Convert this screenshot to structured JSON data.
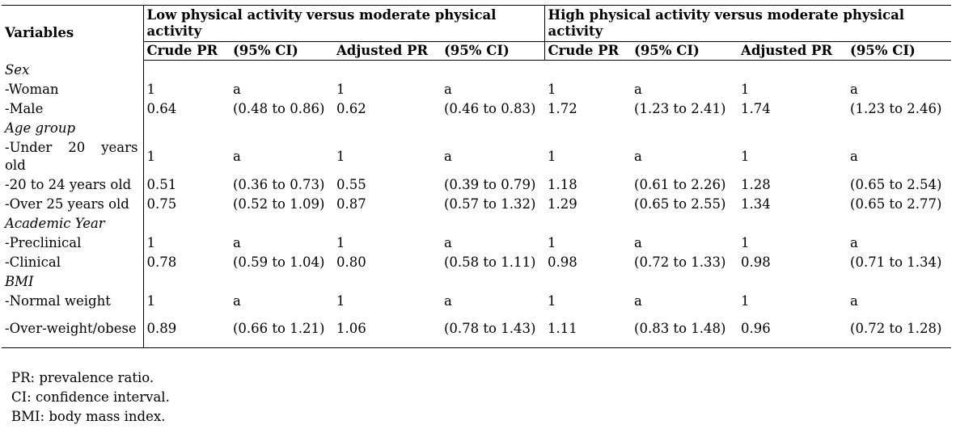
{
  "header": {
    "variables": "Variables",
    "group_low": "Low physical activity versus moderate physical activity",
    "group_high": "High physical activity versus moderate physical activity",
    "sub": [
      "Crude PR",
      "(95% CI)",
      "Adjusted PR",
      "(95% CI)",
      "Crude PR",
      "(95% CI)",
      "Adjusted PR",
      "(95% CI)"
    ]
  },
  "rows": [
    {
      "type": "section",
      "label": "Sex"
    },
    {
      "type": "data",
      "label": "-Woman",
      "cells": [
        "1",
        "a",
        "1",
        "a",
        "1",
        "a",
        "1",
        "a"
      ]
    },
    {
      "type": "data",
      "label": "-Male",
      "cells": [
        "0.64",
        "(0.48 to 0.86)",
        "0.62",
        "(0.46 to 0.83)",
        "1.72",
        "(1.23 to 2.41)",
        "1.74",
        "(1.23 to 2.46)"
      ]
    },
    {
      "type": "section",
      "label": "Age group"
    },
    {
      "type": "data",
      "label": "-Under 20 years old",
      "cells": [
        "1",
        "a",
        "1",
        "a",
        "1",
        "a",
        "1",
        "a"
      ]
    },
    {
      "type": "data",
      "label": "-20 to 24 years old",
      "cells": [
        "0.51",
        "(0.36 to 0.73)",
        "0.55",
        "(0.39 to 0.79)",
        "1.18",
        "(0.61 to 2.26)",
        "1.28",
        "(0.65 to 2.54)"
      ]
    },
    {
      "type": "data",
      "label": "-Over 25 years old",
      "cells": [
        "0.75",
        "(0.52 to 1.09)",
        "0.87",
        "(0.57 to 1.32)",
        "1.29",
        "(0.65 to 2.55)",
        "1.34",
        "(0.65 to 2.77)"
      ]
    },
    {
      "type": "section",
      "label": "Academic Year"
    },
    {
      "type": "data",
      "label": "-Preclinical",
      "cells": [
        "1",
        "a",
        "1",
        "a",
        "1",
        "a",
        "1",
        "a"
      ]
    },
    {
      "type": "data",
      "label": "-Clinical",
      "cells": [
        "0.78",
        "(0.59 to 1.04)",
        "0.80",
        "(0.58 to 1.11)",
        "0.98",
        "(0.72 to 1.33)",
        "0.98",
        "(0.71 to 1.34)"
      ]
    },
    {
      "type": "section",
      "label": "BMI"
    },
    {
      "type": "data",
      "label": "-Normal weight",
      "cells": [
        "1",
        "a",
        "1",
        "a",
        "1",
        "a",
        "1",
        "a"
      ]
    },
    {
      "type": "data",
      "label": "-Over-weight/obese",
      "cells": [
        "0.89",
        "(0.66 to 1.21)",
        "1.06",
        "(0.78 to 1.43)",
        "1.11",
        "(0.83 to 1.48)",
        "0.96",
        "(0.72 to 1.28)"
      ]
    }
  ],
  "notes": [
    "PR: prevalence ratio.",
    "CI: confidence interval.",
    "BMI: body mass index."
  ]
}
